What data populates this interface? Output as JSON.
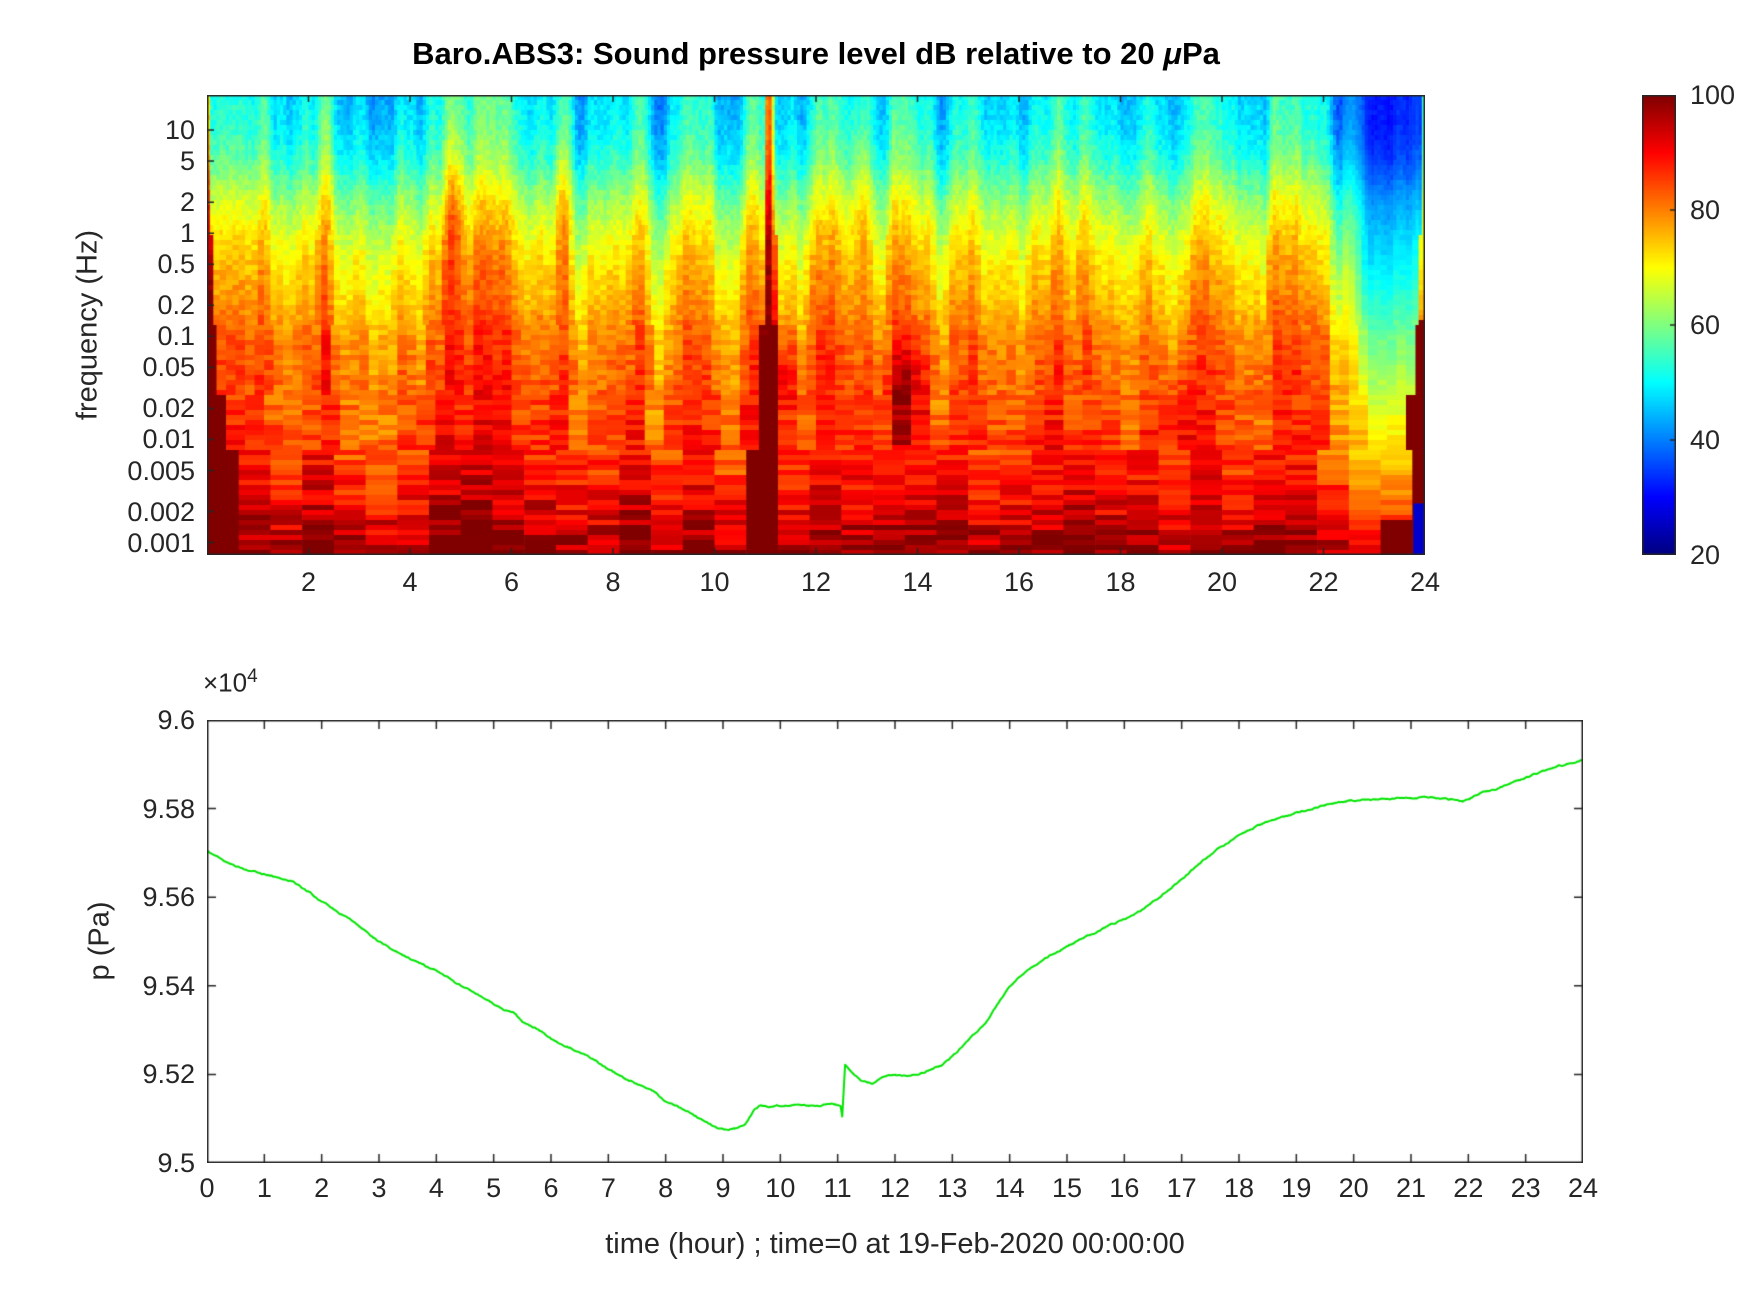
{
  "header": {
    "title_pre": "Baro.ABS3: Sound pressure level dB relative to 20 ",
    "title_mu": "μ",
    "title_post": "Pa"
  },
  "chart_data": [
    {
      "type": "heatmap",
      "title": "Baro.ABS3: Sound pressure level dB relative to 20 μPa",
      "ylabel": "frequency (Hz)",
      "x_range": [
        0,
        24
      ],
      "x_ticks": [
        2,
        4,
        6,
        8,
        10,
        12,
        14,
        16,
        18,
        20,
        22,
        24
      ],
      "y_scale": "log",
      "y_tick_labels": [
        "10",
        "5",
        "2",
        "1",
        "0.5",
        "0.2",
        "0.1",
        "0.05",
        "0.02",
        "0.01",
        "0.005",
        "0.002",
        "0.001"
      ],
      "y_tick_values": [
        10,
        5,
        2,
        1,
        0.5,
        0.2,
        0.1,
        0.05,
        0.02,
        0.01,
        0.005,
        0.002,
        0.001
      ],
      "y_log_range": [
        1.34,
        -3.12
      ],
      "colormap": "jet",
      "clim": [
        20,
        100
      ],
      "colorbar_ticks": [
        100,
        80,
        60,
        40,
        20
      ],
      "db_profile_by_logfreq": [
        [
          -3.12,
          98
        ],
        [
          -3.0,
          96
        ],
        [
          -2.7,
          91
        ],
        [
          -2.3,
          86
        ],
        [
          -2.0,
          84
        ],
        [
          -1.7,
          82
        ],
        [
          -1.3,
          80
        ],
        [
          -1.0,
          78
        ],
        [
          -0.7,
          74
        ],
        [
          -0.3,
          70
        ],
        [
          0.0,
          66
        ],
        [
          0.3,
          61
        ],
        [
          0.7,
          52
        ],
        [
          1.0,
          48
        ],
        [
          1.35,
          46
        ]
      ],
      "hourly_activity_db": [
        3,
        2,
        4,
        2,
        6,
        5,
        4,
        2,
        4,
        2,
        3,
        5,
        5,
        6,
        4,
        3,
        3,
        4,
        4,
        3,
        3,
        2,
        -5,
        -7
      ],
      "events": {
        "spike": {
          "time_hr": 11.08,
          "width_hr": 0.055,
          "amp_db": 24,
          "amp_extra_top_db": 14
        },
        "calm": {
          "start_hr": 22.4,
          "ramp_hr": 0.4,
          "drop_db_by_logfreq": [
            [
              -3.12,
              3
            ],
            [
              -2.6,
              5
            ],
            [
              -2.0,
              8
            ],
            [
              -1.2,
              12
            ],
            [
              -0.3,
              13
            ],
            [
              0.5,
              9
            ],
            [
              1.35,
              5
            ]
          ]
        },
        "edge_width_hr": 0.3,
        "corner_blue": {
          "t_start": 23.77,
          "logf_above": -2.62,
          "db": 26
        },
        "hotspots": [
          {
            "t": 11.35,
            "logf": -1.4,
            "dt": 0.25,
            "dlf": 0.45,
            "amp": 9
          },
          {
            "t": 13.75,
            "logf": -1.6,
            "dt": 0.4,
            "dlf": 0.5,
            "amp": 10
          },
          {
            "t": 19.15,
            "logf": -1.8,
            "dt": 0.25,
            "dlf": 0.4,
            "amp": 8
          },
          {
            "t": 4.85,
            "logf": 0.2,
            "dt": 0.15,
            "dlf": 0.8,
            "amp": 8
          },
          {
            "t": 7.0,
            "logf": 0.3,
            "dt": 0.12,
            "dlf": 0.7,
            "amp": 7
          },
          {
            "t": 12.9,
            "logf": 0.4,
            "dt": 0.15,
            "dlf": 0.8,
            "amp": 7
          }
        ]
      }
    },
    {
      "type": "line",
      "xlabel": "time (hour) ; time=0 at 19-Feb-2020 00:00:00",
      "ylabel": "p (Pa)",
      "y_exponent": {
        "base": "×10",
        "power": "4"
      },
      "x_ticks": [
        0,
        1,
        2,
        3,
        4,
        5,
        6,
        7,
        8,
        9,
        10,
        11,
        12,
        13,
        14,
        15,
        16,
        17,
        18,
        19,
        20,
        21,
        22,
        23,
        24
      ],
      "y_tick_labels": [
        "9.5",
        "9.52",
        "9.54",
        "9.56",
        "9.58",
        "9.6"
      ],
      "y_tick_values": [
        9.5,
        9.52,
        9.54,
        9.56,
        9.58,
        9.6
      ],
      "y_range": [
        9.5,
        9.6
      ],
      "unit_scale": 10000,
      "line_color": "#00e400",
      "points": [
        [
          0,
          9.5705
        ],
        [
          0.3,
          9.568
        ],
        [
          0.6,
          9.5665
        ],
        [
          0.9,
          9.5655
        ],
        [
          1.2,
          9.5645
        ],
        [
          1.5,
          9.5635
        ],
        [
          1.8,
          9.561
        ],
        [
          2,
          9.559
        ],
        [
          2.3,
          9.5565
        ],
        [
          2.6,
          9.554
        ],
        [
          3,
          9.55
        ],
        [
          3.4,
          9.547
        ],
        [
          3.8,
          9.5445
        ],
        [
          4,
          9.5435
        ],
        [
          4.3,
          9.541
        ],
        [
          4.6,
          9.539
        ],
        [
          5,
          9.536
        ],
        [
          5.2,
          9.5345
        ],
        [
          5.35,
          9.534
        ],
        [
          5.5,
          9.532
        ],
        [
          5.8,
          9.53
        ],
        [
          6,
          9.528
        ],
        [
          6.4,
          9.5255
        ],
        [
          6.8,
          9.523
        ],
        [
          7,
          9.521
        ],
        [
          7.4,
          9.5185
        ],
        [
          7.8,
          9.516
        ],
        [
          8,
          9.514
        ],
        [
          8.4,
          9.5115
        ],
        [
          8.8,
          9.5085
        ],
        [
          9,
          9.5075
        ],
        [
          9.2,
          9.5078
        ],
        [
          9.4,
          9.509
        ],
        [
          9.55,
          9.512
        ],
        [
          9.65,
          9.513
        ],
        [
          9.8,
          9.5125
        ],
        [
          10,
          9.513
        ],
        [
          10.3,
          9.5132
        ],
        [
          10.6,
          9.5128
        ],
        [
          10.9,
          9.5133
        ],
        [
          11.05,
          9.513
        ],
        [
          11.08,
          9.5105
        ],
        [
          11.13,
          9.5222
        ],
        [
          11.25,
          9.5205
        ],
        [
          11.4,
          9.5185
        ],
        [
          11.6,
          9.518
        ],
        [
          11.8,
          9.5195
        ],
        [
          12,
          9.52
        ],
        [
          12.2,
          9.5195
        ],
        [
          12.5,
          9.5205
        ],
        [
          12.8,
          9.522
        ],
        [
          13,
          9.524
        ],
        [
          13.3,
          9.528
        ],
        [
          13.6,
          9.532
        ],
        [
          13.8,
          9.536
        ],
        [
          14,
          9.54
        ],
        [
          14.3,
          9.5435
        ],
        [
          14.6,
          9.546
        ],
        [
          15,
          9.549
        ],
        [
          15.4,
          9.5515
        ],
        [
          15.8,
          9.554
        ],
        [
          16,
          9.555
        ],
        [
          16.3,
          9.557
        ],
        [
          16.6,
          9.56
        ],
        [
          17,
          9.564
        ],
        [
          17.3,
          9.5675
        ],
        [
          17.6,
          9.5705
        ],
        [
          18,
          9.574
        ],
        [
          18.3,
          9.576
        ],
        [
          18.6,
          9.5775
        ],
        [
          19,
          9.579
        ],
        [
          19.4,
          9.5805
        ],
        [
          19.8,
          9.5815
        ],
        [
          20.2,
          9.582
        ],
        [
          20.6,
          9.582
        ],
        [
          21,
          9.5825
        ],
        [
          21.4,
          9.5825
        ],
        [
          21.7,
          9.582
        ],
        [
          21.9,
          9.5815
        ],
        [
          22,
          9.582
        ],
        [
          22.2,
          9.5835
        ],
        [
          22.5,
          9.5845
        ],
        [
          22.8,
          9.586
        ],
        [
          23.1,
          9.5875
        ],
        [
          23.4,
          9.589
        ],
        [
          23.7,
          9.59
        ],
        [
          24,
          9.591
        ]
      ]
    }
  ]
}
